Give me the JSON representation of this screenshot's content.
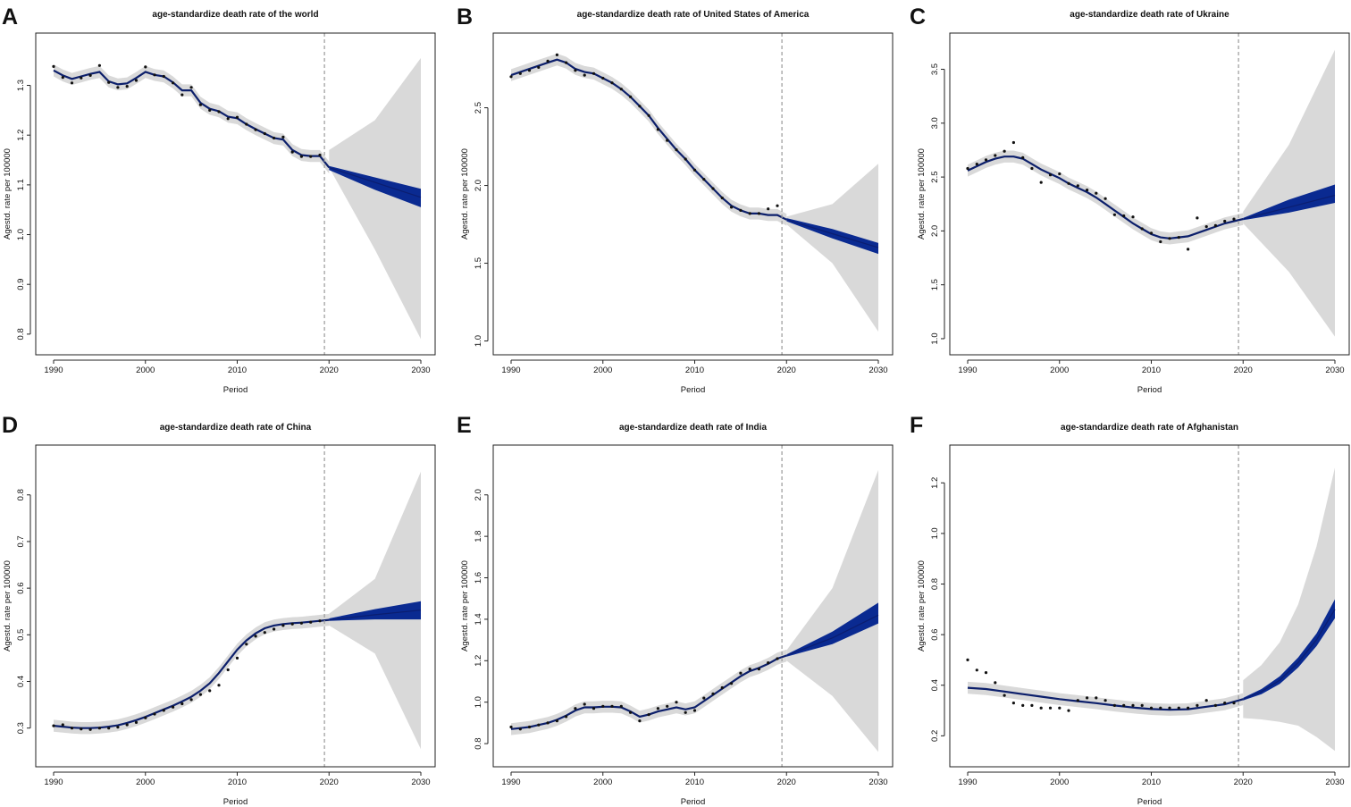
{
  "colors": {
    "prediction_interval": "#d9d9d9",
    "projection_band": "#0a2a91",
    "fit_line": "#0c1f6b",
    "points": "#111111",
    "cutoff_line": "#9a9a9a"
  },
  "chart_data": [
    {
      "panel": "A",
      "type": "line",
      "title": "age-standardize death rate of the world",
      "xlabel": "Period",
      "ylabel": "Agestd. rate per 100000",
      "xlim": [
        1990,
        2030
      ],
      "ylim": [
        0.78,
        1.38
      ],
      "xticks": [
        1990,
        2000,
        2010,
        2020,
        2030
      ],
      "yticks": [
        0.8,
        0.9,
        1.0,
        1.1,
        1.2,
        1.3
      ],
      "cutoff_year": 2019.5,
      "observed": {
        "x": [
          1990,
          1991,
          1992,
          1993,
          1994,
          1995,
          1996,
          1997,
          1998,
          1999,
          2000,
          2001,
          2002,
          2003,
          2004,
          2005,
          2006,
          2007,
          2008,
          2009,
          2010,
          2011,
          2012,
          2013,
          2014,
          2015,
          2016,
          2017,
          2018,
          2019
        ],
        "y": [
          1.338,
          1.316,
          1.305,
          1.315,
          1.32,
          1.34,
          1.306,
          1.296,
          1.298,
          1.31,
          1.337,
          1.321,
          1.318,
          1.305,
          1.281,
          1.296,
          1.261,
          1.25,
          1.247,
          1.233,
          1.236,
          1.222,
          1.211,
          1.203,
          1.194,
          1.196,
          1.166,
          1.157,
          1.157,
          1.16
        ]
      },
      "fitted": {
        "x": [
          1990,
          1991,
          1992,
          1993,
          1994,
          1995,
          1996,
          1997,
          1998,
          1999,
          2000,
          2001,
          2002,
          2003,
          2004,
          2005,
          2006,
          2007,
          2008,
          2009,
          2010,
          2011,
          2012,
          2013,
          2014,
          2015,
          2016,
          2017,
          2018,
          2019,
          2020
        ],
        "y": [
          1.33,
          1.32,
          1.313,
          1.318,
          1.323,
          1.327,
          1.308,
          1.302,
          1.304,
          1.315,
          1.327,
          1.321,
          1.318,
          1.306,
          1.29,
          1.29,
          1.265,
          1.253,
          1.248,
          1.237,
          1.234,
          1.222,
          1.212,
          1.203,
          1.194,
          1.191,
          1.17,
          1.16,
          1.158,
          1.158,
          1.135
        ]
      },
      "projection": {
        "x": [
          2020,
          2025,
          2030
        ],
        "mean": [
          1.135,
          1.105,
          1.075
        ],
        "inner_lower": [
          1.13,
          1.09,
          1.055
        ],
        "inner_upper": [
          1.138,
          1.115,
          1.092
        ],
        "pi_lower": [
          1.135,
          0.97,
          0.79
        ],
        "pi_upper": [
          1.17,
          1.23,
          1.355
        ]
      }
    },
    {
      "panel": "B",
      "type": "line",
      "title": "age-standardize death rate of United States of America",
      "xlabel": "Period",
      "ylabel": "Agestd. rate per 100000",
      "xlim": [
        1990,
        2030
      ],
      "ylim": [
        0.98,
        2.9
      ],
      "xticks": [
        1990,
        2000,
        2010,
        2020,
        2030
      ],
      "yticks": [
        1.0,
        1.5,
        2.0,
        2.5
      ],
      "cutoff_year": 2019.5,
      "observed": {
        "x": [
          1990,
          1991,
          1992,
          1993,
          1994,
          1995,
          1996,
          1997,
          1998,
          1999,
          2000,
          2001,
          2002,
          2003,
          2004,
          2005,
          2006,
          2007,
          2008,
          2009,
          2010,
          2011,
          2012,
          2013,
          2014,
          2015,
          2016,
          2017,
          2018,
          2019
        ],
        "y": [
          2.7,
          2.72,
          2.74,
          2.76,
          2.8,
          2.84,
          2.79,
          2.74,
          2.71,
          2.72,
          2.69,
          2.66,
          2.62,
          2.57,
          2.51,
          2.45,
          2.36,
          2.29,
          2.23,
          2.17,
          2.1,
          2.04,
          1.98,
          1.92,
          1.86,
          1.84,
          1.82,
          1.82,
          1.85,
          1.87
        ]
      },
      "fitted": {
        "x": [
          1990,
          1991,
          1992,
          1993,
          1994,
          1995,
          1996,
          1997,
          1998,
          1999,
          2000,
          2001,
          2002,
          2003,
          2004,
          2005,
          2006,
          2007,
          2008,
          2009,
          2010,
          2011,
          2012,
          2013,
          2014,
          2015,
          2016,
          2017,
          2018,
          2019,
          2020
        ],
        "y": [
          2.71,
          2.73,
          2.75,
          2.77,
          2.79,
          2.81,
          2.79,
          2.75,
          2.73,
          2.72,
          2.69,
          2.66,
          2.62,
          2.57,
          2.51,
          2.45,
          2.37,
          2.3,
          2.23,
          2.17,
          2.1,
          2.04,
          1.98,
          1.92,
          1.87,
          1.84,
          1.82,
          1.82,
          1.81,
          1.81,
          1.78
        ]
      },
      "projection": {
        "x": [
          2020,
          2025,
          2030
        ],
        "mean": [
          1.78,
          1.69,
          1.6
        ],
        "inner_lower": [
          1.77,
          1.66,
          1.56
        ],
        "inner_upper": [
          1.79,
          1.72,
          1.63
        ],
        "pi_lower": [
          1.75,
          1.5,
          1.06
        ],
        "pi_upper": [
          1.8,
          1.88,
          2.14
        ]
      }
    },
    {
      "panel": "C",
      "type": "line",
      "title": "age-standardize death rate of Ukraine",
      "xlabel": "Period",
      "ylabel": "Agestd. rate per 100000",
      "xlim": [
        1990,
        2030
      ],
      "ylim": [
        0.95,
        3.72
      ],
      "xticks": [
        1990,
        2000,
        2010,
        2020,
        2030
      ],
      "yticks": [
        1.0,
        1.5,
        2.0,
        2.5,
        3.0,
        3.5
      ],
      "cutoff_year": 2019.5,
      "observed": {
        "x": [
          1990,
          1991,
          1992,
          1993,
          1994,
          1995,
          1996,
          1997,
          1998,
          1999,
          2000,
          2001,
          2002,
          2003,
          2004,
          2005,
          2006,
          2007,
          2008,
          2009,
          2010,
          2011,
          2012,
          2013,
          2014,
          2015,
          2016,
          2017,
          2018,
          2019
        ],
        "y": [
          2.58,
          2.62,
          2.66,
          2.7,
          2.74,
          2.82,
          2.68,
          2.58,
          2.45,
          2.52,
          2.53,
          2.44,
          2.42,
          2.38,
          2.35,
          2.3,
          2.15,
          2.14,
          2.13,
          2.02,
          1.98,
          1.9,
          1.93,
          1.94,
          1.83,
          2.12,
          2.04,
          2.05,
          2.09,
          2.11
        ]
      },
      "fitted": {
        "x": [
          1990,
          1991,
          1992,
          1993,
          1994,
          1995,
          1996,
          1997,
          1998,
          1999,
          2000,
          2001,
          2002,
          2003,
          2004,
          2005,
          2006,
          2007,
          2008,
          2009,
          2010,
          2011,
          2012,
          2013,
          2014,
          2015,
          2016,
          2017,
          2018,
          2019,
          2020
        ],
        "y": [
          2.56,
          2.6,
          2.64,
          2.67,
          2.69,
          2.69,
          2.67,
          2.62,
          2.57,
          2.53,
          2.49,
          2.44,
          2.4,
          2.36,
          2.31,
          2.25,
          2.19,
          2.13,
          2.07,
          2.02,
          1.97,
          1.94,
          1.93,
          1.94,
          1.95,
          1.98,
          2.01,
          2.04,
          2.07,
          2.09,
          2.11
        ]
      },
      "projection": {
        "x": [
          2020,
          2025,
          2030
        ],
        "mean": [
          2.11,
          2.22,
          2.33
        ],
        "inner_lower": [
          2.1,
          2.17,
          2.26
        ],
        "inner_upper": [
          2.12,
          2.29,
          2.43
        ],
        "pi_lower": [
          2.07,
          1.62,
          1.02
        ],
        "pi_upper": [
          2.18,
          2.8,
          3.68
        ]
      }
    },
    {
      "panel": "D",
      "type": "line",
      "title": "age-standardize death rate of China",
      "xlabel": "Period",
      "ylabel": "Agestd. rate per 100000",
      "xlim": [
        1990,
        2030
      ],
      "ylim": [
        0.24,
        0.88
      ],
      "xticks": [
        1990,
        2000,
        2010,
        2020,
        2030
      ],
      "yticks": [
        0.3,
        0.4,
        0.5,
        0.6,
        0.7,
        0.8
      ],
      "cutoff_year": 2019.5,
      "observed": {
        "x": [
          1990,
          1991,
          1992,
          1993,
          1994,
          1995,
          1996,
          1997,
          1998,
          1999,
          2000,
          2001,
          2002,
          2003,
          2004,
          2005,
          2006,
          2007,
          2008,
          2009,
          2010,
          2011,
          2012,
          2013,
          2014,
          2015,
          2016,
          2017,
          2018,
          2019
        ],
        "y": [
          0.305,
          0.307,
          0.3,
          0.298,
          0.297,
          0.3,
          0.3,
          0.302,
          0.307,
          0.312,
          0.322,
          0.33,
          0.338,
          0.345,
          0.352,
          0.361,
          0.372,
          0.38,
          0.392,
          0.425,
          0.45,
          0.48,
          0.497,
          0.505,
          0.512,
          0.52,
          0.523,
          0.525,
          0.527,
          0.53
        ]
      },
      "fitted": {
        "x": [
          1990,
          1991,
          1992,
          1993,
          1994,
          1995,
          1996,
          1997,
          1998,
          1999,
          2000,
          2001,
          2002,
          2003,
          2004,
          2005,
          2006,
          2007,
          2008,
          2009,
          2010,
          2011,
          2012,
          2013,
          2014,
          2015,
          2016,
          2017,
          2018,
          2019,
          2020
        ],
        "y": [
          0.305,
          0.303,
          0.301,
          0.3,
          0.3,
          0.301,
          0.303,
          0.306,
          0.311,
          0.317,
          0.324,
          0.332,
          0.34,
          0.348,
          0.357,
          0.367,
          0.38,
          0.396,
          0.418,
          0.443,
          0.468,
          0.488,
          0.503,
          0.514,
          0.52,
          0.523,
          0.525,
          0.526,
          0.528,
          0.53,
          0.532
        ]
      },
      "projection": {
        "x": [
          2020,
          2025,
          2030
        ],
        "mean": [
          0.532,
          0.543,
          0.553
        ],
        "inner_lower": [
          0.53,
          0.533,
          0.533
        ],
        "inner_upper": [
          0.535,
          0.555,
          0.572
        ],
        "pi_lower": [
          0.52,
          0.46,
          0.255
        ],
        "pi_upper": [
          0.545,
          0.62,
          0.85
        ]
      }
    },
    {
      "panel": "E",
      "type": "line",
      "title": "age-standardize death rate of India",
      "xlabel": "Period",
      "ylabel": "Agestd. rate per 100000",
      "xlim": [
        1990,
        2030
      ],
      "ylim": [
        0.74,
        2.18
      ],
      "xticks": [
        1990,
        2000,
        2010,
        2020,
        2030
      ],
      "yticks": [
        0.8,
        1.0,
        1.2,
        1.4,
        1.6,
        1.8,
        2.0
      ],
      "cutoff_year": 2019.5,
      "observed": {
        "x": [
          1990,
          1991,
          1992,
          1993,
          1994,
          1995,
          1996,
          1997,
          1998,
          1999,
          2000,
          2001,
          2002,
          2003,
          2004,
          2005,
          2006,
          2007,
          2008,
          2009,
          2010,
          2011,
          2012,
          2013,
          2014,
          2015,
          2016,
          2017,
          2018,
          2019
        ],
        "y": [
          0.88,
          0.87,
          0.88,
          0.89,
          0.9,
          0.91,
          0.93,
          0.97,
          0.99,
          0.97,
          0.98,
          0.98,
          0.98,
          0.95,
          0.91,
          0.94,
          0.97,
          0.98,
          1.0,
          0.95,
          0.96,
          1.02,
          1.04,
          1.07,
          1.09,
          1.14,
          1.16,
          1.16,
          1.19,
          1.21
        ]
      },
      "fitted": {
        "x": [
          1990,
          1991,
          1992,
          1993,
          1994,
          1995,
          1996,
          1997,
          1998,
          1999,
          2000,
          2001,
          2002,
          2003,
          2004,
          2005,
          2006,
          2007,
          2008,
          2009,
          2010,
          2011,
          2012,
          2013,
          2014,
          2015,
          2016,
          2017,
          2018,
          2019,
          2020
        ],
        "y": [
          0.87,
          0.875,
          0.88,
          0.89,
          0.9,
          0.915,
          0.935,
          0.96,
          0.975,
          0.975,
          0.978,
          0.978,
          0.975,
          0.955,
          0.93,
          0.94,
          0.955,
          0.965,
          0.975,
          0.965,
          0.975,
          1.005,
          1.035,
          1.065,
          1.095,
          1.125,
          1.15,
          1.165,
          1.185,
          1.21,
          1.225
        ]
      },
      "projection": {
        "x": [
          2020,
          2025,
          2030
        ],
        "mean": [
          1.225,
          1.31,
          1.42
        ],
        "inner_lower": [
          1.22,
          1.28,
          1.38
        ],
        "inner_upper": [
          1.23,
          1.34,
          1.48
        ],
        "pi_lower": [
          1.2,
          1.03,
          0.76
        ],
        "pi_upper": [
          1.25,
          1.55,
          2.12
        ]
      }
    },
    {
      "panel": "F",
      "type": "line",
      "title": "age-standardize death rate of Afghanistan",
      "xlabel": "Period",
      "ylabel": "Agestd. rate per 100000",
      "xlim": [
        1990,
        2030
      ],
      "ylim": [
        0.12,
        1.3
      ],
      "xticks": [
        1990,
        2000,
        2010,
        2020,
        2030
      ],
      "yticks": [
        0.2,
        0.4,
        0.6,
        0.8,
        1.0,
        1.2
      ],
      "cutoff_year": 2019.5,
      "observed": {
        "x": [
          1990,
          1991,
          1992,
          1993,
          1994,
          1995,
          1996,
          1997,
          1998,
          1999,
          2000,
          2001,
          2002,
          2003,
          2004,
          2005,
          2006,
          2007,
          2008,
          2009,
          2010,
          2011,
          2012,
          2013,
          2014,
          2015,
          2016,
          2017,
          2018,
          2019
        ],
        "y": [
          0.5,
          0.46,
          0.45,
          0.41,
          0.36,
          0.33,
          0.32,
          0.32,
          0.31,
          0.31,
          0.31,
          0.3,
          0.34,
          0.35,
          0.35,
          0.34,
          0.32,
          0.32,
          0.32,
          0.32,
          0.31,
          0.31,
          0.31,
          0.31,
          0.31,
          0.32,
          0.34,
          0.32,
          0.33,
          0.33
        ]
      },
      "fitted": {
        "x": [
          1990,
          1992,
          1994,
          1996,
          1998,
          2000,
          2002,
          2004,
          2006,
          2008,
          2010,
          2012,
          2014,
          2016,
          2018,
          2020
        ],
        "y": [
          0.39,
          0.385,
          0.375,
          0.365,
          0.355,
          0.345,
          0.337,
          0.329,
          0.32,
          0.312,
          0.306,
          0.303,
          0.305,
          0.315,
          0.325,
          0.345
        ]
      },
      "projection": {
        "x": [
          2020,
          2022,
          2024,
          2026,
          2028,
          2030
        ],
        "mean": [
          0.345,
          0.375,
          0.42,
          0.49,
          0.58,
          0.7
        ],
        "inner_lower": [
          0.34,
          0.365,
          0.405,
          0.47,
          0.555,
          0.665
        ],
        "inner_upper": [
          0.35,
          0.385,
          0.435,
          0.51,
          0.605,
          0.74
        ],
        "pi_lower": [
          0.27,
          0.265,
          0.255,
          0.24,
          0.195,
          0.14
        ],
        "pi_upper": [
          0.42,
          0.48,
          0.57,
          0.72,
          0.95,
          1.26
        ]
      }
    }
  ]
}
